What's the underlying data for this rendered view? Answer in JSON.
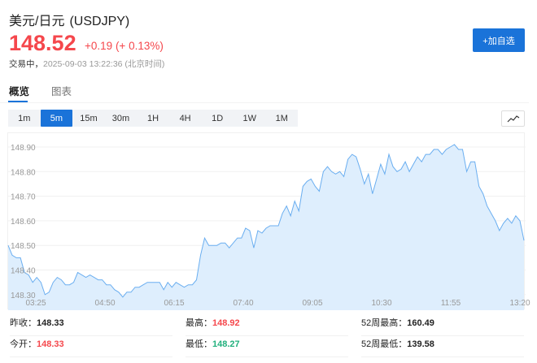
{
  "header": {
    "name": "美元/日元",
    "code": "(USDJPY)",
    "price": "148.52",
    "change": "+0.19",
    "change_pct": "(+ 0.13%)",
    "status": "交易中，",
    "timestamp": "2025-09-03 13:22:36",
    "timezone": "(北京时间)",
    "add_watchlist": "+加自选"
  },
  "colors": {
    "up": "#f5474c",
    "down": "#22b07d",
    "accent": "#1a73d9",
    "line": "#6aaef0",
    "fill": "#deeefd"
  },
  "tabs": [
    {
      "label": "概览",
      "active": true
    },
    {
      "label": "图表",
      "active": false
    }
  ],
  "timeframes": [
    {
      "label": "1m"
    },
    {
      "label": "5m",
      "active": true
    },
    {
      "label": "15m"
    },
    {
      "label": "30m"
    },
    {
      "label": "1H"
    },
    {
      "label": "4H"
    },
    {
      "label": "1D"
    },
    {
      "label": "1W"
    },
    {
      "label": "1M"
    }
  ],
  "chart_type_icon": "line-chart-icon",
  "chart_data": {
    "type": "area",
    "ylim": [
      148.28,
      148.94
    ],
    "y_ticks": [
      "148.90",
      "148.80",
      "148.70",
      "148.60",
      "148.50",
      "148.40",
      "148.30"
    ],
    "x_ticks": [
      "03:25",
      "04:50",
      "06:15",
      "07:40",
      "09:05",
      "10:30",
      "11:55",
      "13:20"
    ],
    "grid": true,
    "values": [
      148.5,
      148.46,
      148.45,
      148.45,
      148.39,
      148.38,
      148.35,
      148.37,
      148.35,
      148.3,
      148.31,
      148.35,
      148.37,
      148.36,
      148.34,
      148.34,
      148.35,
      148.39,
      148.38,
      148.37,
      148.38,
      148.37,
      148.36,
      148.36,
      148.34,
      148.34,
      148.32,
      148.31,
      148.29,
      148.31,
      148.31,
      148.33,
      148.33,
      148.34,
      148.35,
      148.35,
      148.35,
      148.35,
      148.32,
      148.35,
      148.33,
      148.35,
      148.34,
      148.33,
      148.34,
      148.34,
      148.36,
      148.46,
      148.53,
      148.5,
      148.5,
      148.5,
      148.51,
      148.51,
      148.49,
      148.51,
      148.53,
      148.53,
      148.57,
      148.56,
      148.49,
      148.56,
      148.55,
      148.57,
      148.58,
      148.58,
      148.58,
      148.63,
      148.66,
      148.62,
      148.68,
      148.64,
      148.74,
      148.76,
      148.77,
      148.74,
      148.72,
      148.8,
      148.82,
      148.8,
      148.79,
      148.8,
      148.78,
      148.85,
      148.87,
      148.86,
      148.81,
      148.75,
      148.79,
      148.71,
      148.77,
      148.83,
      148.79,
      148.87,
      148.82,
      148.8,
      148.81,
      148.84,
      148.8,
      148.83,
      148.86,
      148.84,
      148.87,
      148.87,
      148.89,
      148.89,
      148.87,
      148.89,
      148.9,
      148.91,
      148.89,
      148.89,
      148.8,
      148.84,
      148.84,
      148.74,
      148.71,
      148.66,
      148.63,
      148.6,
      148.56,
      148.59,
      148.61,
      148.59,
      148.62,
      148.6,
      148.52
    ]
  },
  "stats": [
    [
      {
        "label": "昨收：",
        "value": "148.33",
        "tone": ""
      },
      {
        "label": "最高：",
        "value": "148.92",
        "tone": "red"
      },
      {
        "label": "52周最高：",
        "value": "160.49",
        "tone": ""
      }
    ],
    [
      {
        "label": "今开：",
        "value": "148.33",
        "tone": "red"
      },
      {
        "label": "最低：",
        "value": "148.27",
        "tone": "green"
      },
      {
        "label": "52周最低：",
        "value": "139.58",
        "tone": ""
      }
    ]
  ]
}
